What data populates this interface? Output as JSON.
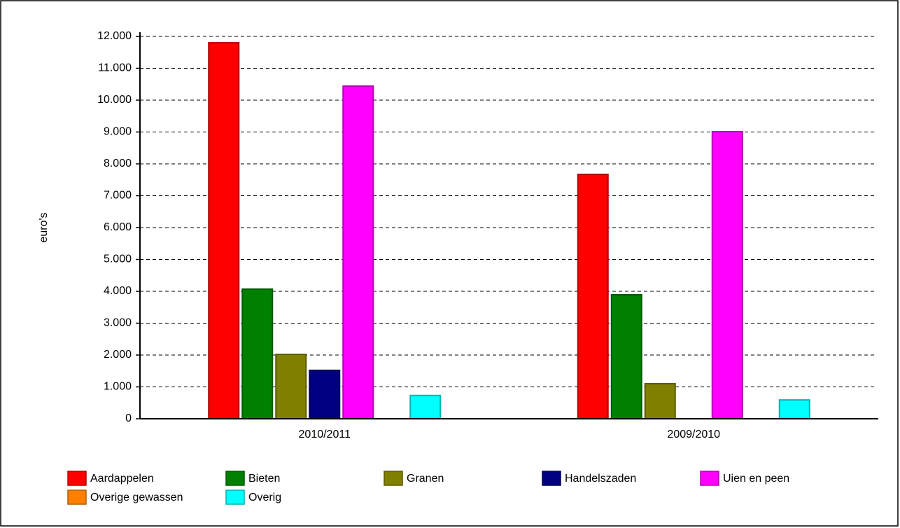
{
  "chart_data": {
    "type": "bar",
    "y_label": "euro's",
    "categories": [
      "2010/2011",
      "2009/2010"
    ],
    "series": [
      {
        "name": "Aardappelen",
        "color": "#ff0000",
        "values": [
          11800,
          7670
        ]
      },
      {
        "name": "Bieten",
        "color": "#008000",
        "values": [
          4070,
          3890
        ]
      },
      {
        "name": "Granen",
        "color": "#808000",
        "values": [
          2020,
          1100
        ]
      },
      {
        "name": "Handelszaden",
        "color": "#000080",
        "values": [
          1520,
          0
        ]
      },
      {
        "name": "Uien en peen",
        "color": "#ff00ff",
        "values": [
          10440,
          9010
        ]
      },
      {
        "name": "Overige gewassen",
        "color": "#ff8000",
        "values": [
          0,
          0
        ]
      },
      {
        "name": "Overig",
        "color": "#00ffff",
        "values": [
          730,
          590
        ]
      }
    ],
    "ylim": [
      0,
      12000
    ],
    "yticks": [
      0,
      {
        "value": 1000,
        "label": "1.000"
      },
      {
        "value": 2000,
        "label": "2.000"
      },
      {
        "value": 3000,
        "label": "3.000"
      },
      {
        "value": 4000,
        "label": "4.000"
      },
      {
        "value": 5000,
        "label": "5.000"
      },
      {
        "value": 6000,
        "label": "6.000"
      },
      {
        "value": 7000,
        "label": "7.000"
      },
      {
        "value": 8000,
        "label": "8.000"
      },
      {
        "value": 9000,
        "label": "9.000"
      },
      {
        "value": 10000,
        "label": "10.000"
      },
      {
        "value": 11000,
        "label": "11.000"
      },
      {
        "value": 12000,
        "label": "12.000"
      }
    ],
    "grid": true,
    "legend": "bottom"
  }
}
